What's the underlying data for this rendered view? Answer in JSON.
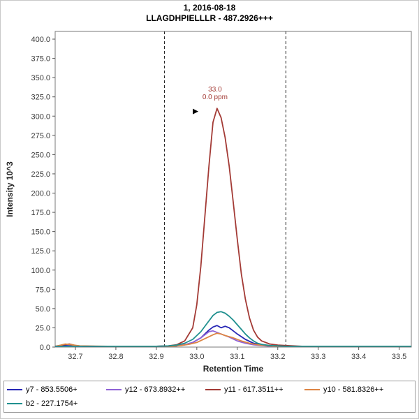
{
  "title": {
    "line1": "1, 2016-08-18",
    "line2": "LLAGDHPIELLLR - 487.2926+++"
  },
  "chart_data": {
    "type": "line",
    "title": "1, 2016-08-18",
    "subtitle": "LLAGDHPIELLLR - 487.2926+++",
    "xlabel": "Retention Time",
    "ylabel": "Intensity 10^3",
    "xlim": [
      32.65,
      33.53
    ],
    "ylim": [
      0,
      410
    ],
    "x_tick_values": [
      32.7,
      32.8,
      32.9,
      33.0,
      33.1,
      33.2,
      33.3,
      33.4,
      33.5
    ],
    "x_tick_labels": [
      "32.7",
      "32.8",
      "32.9",
      "33.0",
      "33.1",
      "33.2",
      "33.3",
      "33.4",
      "33.5"
    ],
    "y_tick_values": [
      0,
      25,
      50,
      75,
      100,
      125,
      150,
      175,
      200,
      225,
      250,
      275,
      300,
      325,
      350,
      375,
      400
    ],
    "y_tick_labels": [
      "0.0",
      "25.0",
      "50.0",
      "75.0",
      "100.0",
      "125.0",
      "150.0",
      "175.0",
      "200.0",
      "225.0",
      "250.0",
      "275.0",
      "300.0",
      "325.0",
      "350.0",
      "375.0",
      "400.0"
    ],
    "integration_boundaries": [
      32.92,
      33.22
    ],
    "annotation": {
      "x": 33.045,
      "y": 310,
      "lines": [
        "33.0",
        "0.0 ppm"
      ],
      "color": "#a33a35"
    },
    "apex_marker": {
      "x": 32.99,
      "y": 306,
      "color": "#000000"
    },
    "grid": false,
    "legend_position": "bottom",
    "series": [
      {
        "id": "y7",
        "name": "y7 - 853.5506+",
        "color": "#2727b5",
        "points": [
          [
            32.65,
            1
          ],
          [
            32.67,
            2
          ],
          [
            32.69,
            1.5
          ],
          [
            32.75,
            1
          ],
          [
            32.82,
            1
          ],
          [
            32.9,
            1
          ],
          [
            32.93,
            1
          ],
          [
            32.95,
            1.5
          ],
          [
            32.97,
            3
          ],
          [
            32.99,
            6
          ],
          [
            33.01,
            12
          ],
          [
            33.03,
            22
          ],
          [
            33.04,
            26
          ],
          [
            33.05,
            28
          ],
          [
            33.06,
            25
          ],
          [
            33.07,
            27
          ],
          [
            33.08,
            25
          ],
          [
            33.09,
            21
          ],
          [
            33.1,
            17
          ],
          [
            33.12,
            10
          ],
          [
            33.14,
            5
          ],
          [
            33.16,
            3
          ],
          [
            33.18,
            1.5
          ],
          [
            33.2,
            1
          ],
          [
            33.28,
            1
          ],
          [
            33.38,
            1
          ],
          [
            33.53,
            1
          ]
        ]
      },
      {
        "id": "y12",
        "name": "y12 - 673.8932++",
        "color": "#8f62d6",
        "points": [
          [
            32.65,
            1
          ],
          [
            32.72,
            1
          ],
          [
            32.82,
            1
          ],
          [
            32.9,
            1
          ],
          [
            32.95,
            1.5
          ],
          [
            32.97,
            3
          ],
          [
            32.99,
            6
          ],
          [
            33.01,
            12
          ],
          [
            33.03,
            20
          ],
          [
            33.04,
            21
          ],
          [
            33.05,
            19
          ],
          [
            33.06,
            17
          ],
          [
            33.08,
            13
          ],
          [
            33.1,
            8
          ],
          [
            33.12,
            5
          ],
          [
            33.14,
            3
          ],
          [
            33.16,
            2
          ],
          [
            33.18,
            1
          ],
          [
            33.28,
            1
          ],
          [
            33.4,
            1
          ],
          [
            33.53,
            1
          ]
        ]
      },
      {
        "id": "y11",
        "name": "y11 - 617.3511++",
        "color": "#a33a35",
        "points": [
          [
            32.65,
            1
          ],
          [
            32.67,
            3
          ],
          [
            32.685,
            4
          ],
          [
            32.7,
            2
          ],
          [
            32.72,
            1
          ],
          [
            32.82,
            1
          ],
          [
            32.9,
            1
          ],
          [
            32.93,
            1.5
          ],
          [
            32.95,
            3
          ],
          [
            32.97,
            8
          ],
          [
            32.99,
            25
          ],
          [
            33.0,
            55
          ],
          [
            33.01,
            105
          ],
          [
            33.02,
            170
          ],
          [
            33.03,
            235
          ],
          [
            33.04,
            292
          ],
          [
            33.05,
            310
          ],
          [
            33.06,
            298
          ],
          [
            33.07,
            272
          ],
          [
            33.08,
            235
          ],
          [
            33.09,
            188
          ],
          [
            33.1,
            140
          ],
          [
            33.11,
            95
          ],
          [
            33.12,
            62
          ],
          [
            33.13,
            38
          ],
          [
            33.14,
            22
          ],
          [
            33.15,
            13
          ],
          [
            33.16,
            8
          ],
          [
            33.18,
            4
          ],
          [
            33.2,
            2.5
          ],
          [
            33.22,
            2
          ],
          [
            33.26,
            1
          ],
          [
            33.35,
            1
          ],
          [
            33.45,
            1
          ],
          [
            33.53,
            1
          ]
        ]
      },
      {
        "id": "y10",
        "name": "y10 - 581.8326++",
        "color": "#dd8544",
        "points": [
          [
            32.65,
            1
          ],
          [
            32.66,
            2
          ],
          [
            32.675,
            4
          ],
          [
            32.69,
            3
          ],
          [
            32.71,
            1.5
          ],
          [
            32.78,
            1
          ],
          [
            32.88,
            1
          ],
          [
            32.94,
            1
          ],
          [
            32.96,
            2
          ],
          [
            32.98,
            3.5
          ],
          [
            33.0,
            6
          ],
          [
            33.02,
            11
          ],
          [
            33.04,
            16
          ],
          [
            33.05,
            18
          ],
          [
            33.06,
            17
          ],
          [
            33.07,
            15
          ],
          [
            33.09,
            12
          ],
          [
            33.11,
            8
          ],
          [
            33.13,
            5
          ],
          [
            33.15,
            3
          ],
          [
            33.17,
            2
          ],
          [
            33.19,
            1
          ],
          [
            33.28,
            1
          ],
          [
            33.4,
            1
          ],
          [
            33.53,
            1
          ]
        ]
      },
      {
        "id": "b2",
        "name": "b2 - 227.1754+",
        "color": "#20908f",
        "points": [
          [
            32.65,
            1
          ],
          [
            32.72,
            1
          ],
          [
            32.82,
            1
          ],
          [
            32.9,
            1
          ],
          [
            32.93,
            1.5
          ],
          [
            32.95,
            2.5
          ],
          [
            32.97,
            5
          ],
          [
            32.99,
            10
          ],
          [
            33.01,
            20
          ],
          [
            33.03,
            34
          ],
          [
            33.04,
            41
          ],
          [
            33.05,
            45
          ],
          [
            33.06,
            46
          ],
          [
            33.07,
            44
          ],
          [
            33.08,
            40
          ],
          [
            33.09,
            35
          ],
          [
            33.1,
            29
          ],
          [
            33.11,
            23
          ],
          [
            33.12,
            17
          ],
          [
            33.13,
            12
          ],
          [
            33.14,
            8
          ],
          [
            33.15,
            5
          ],
          [
            33.16,
            3.5
          ],
          [
            33.18,
            2
          ],
          [
            33.2,
            1.5
          ],
          [
            33.22,
            1
          ],
          [
            33.32,
            1
          ],
          [
            33.42,
            1
          ],
          [
            33.53,
            1
          ]
        ]
      }
    ]
  }
}
